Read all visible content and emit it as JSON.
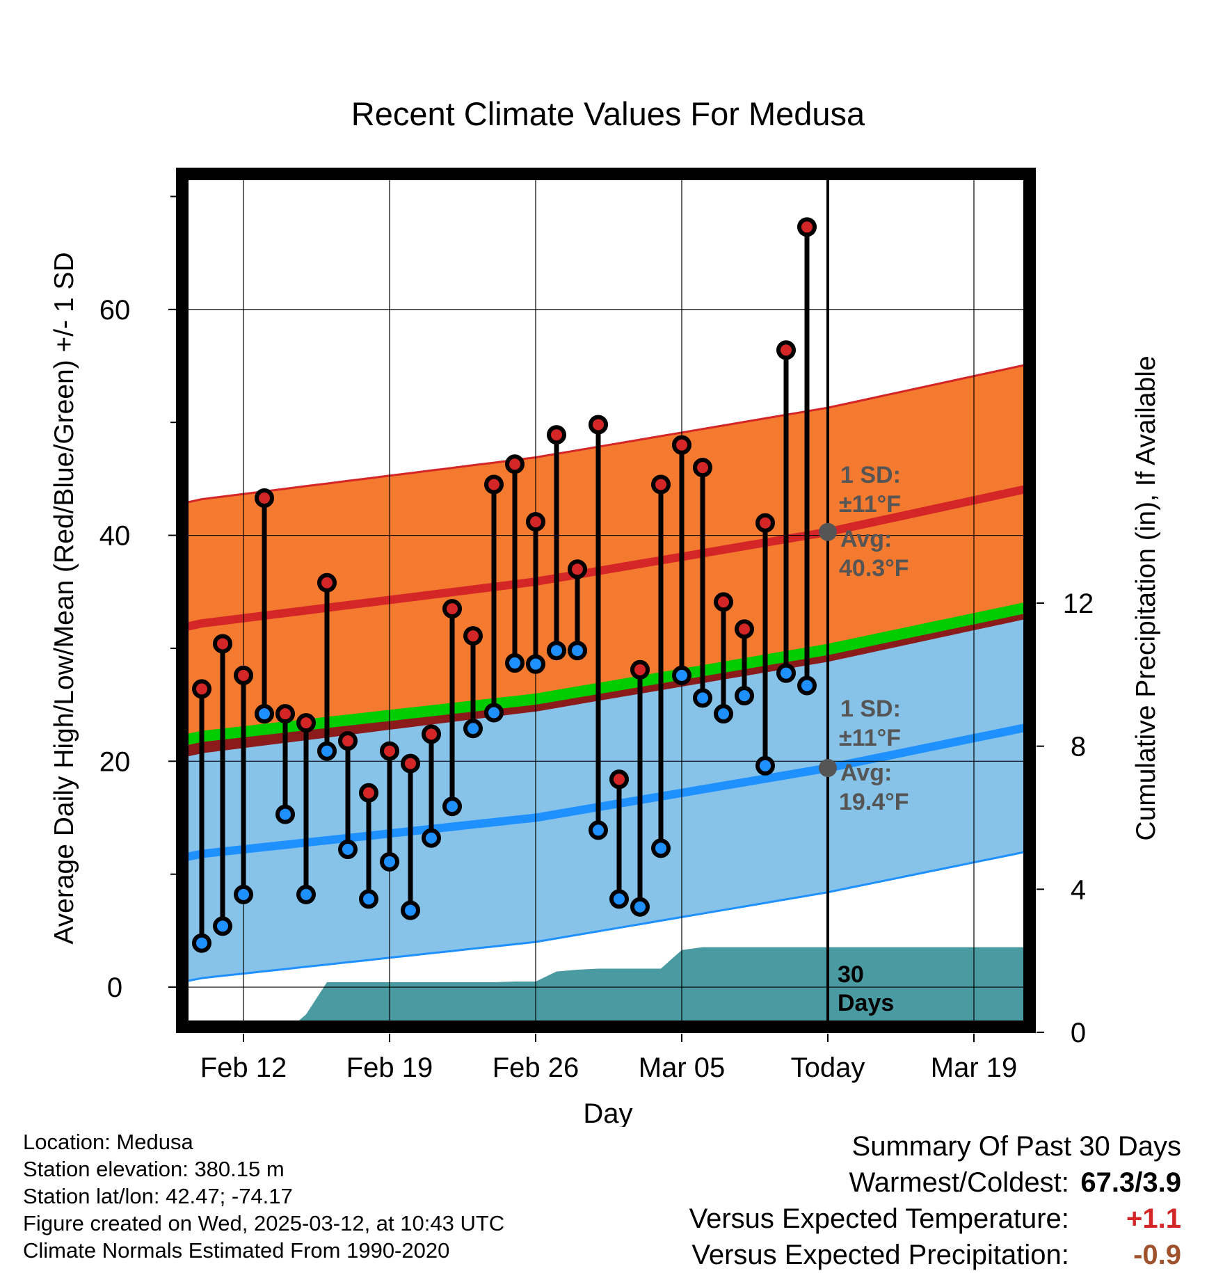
{
  "chart_data": {
    "type": "line",
    "title": "Recent Climate Values For Medusa",
    "xlabel": "Day",
    "ylabel": "Average Daily High/Low/Mean (Red/Blue/Green) +/- 1 SD",
    "ylabel_right": "Cumulative Precipitation (in), If Available",
    "ylim": [
      -4,
      72
    ],
    "ylim_right": [
      0,
      24
    ],
    "y_ticks": [
      0,
      20,
      40,
      60
    ],
    "y_ticks_right": [
      0,
      4,
      8,
      12
    ],
    "x_ticks": [
      "Feb 12",
      "Feb 19",
      "Feb 26",
      "Mar 05",
      "Today",
      "Mar 19"
    ],
    "x_dates": [
      "Feb 10",
      "Feb 11",
      "Feb 12",
      "Feb 13",
      "Feb 14",
      "Feb 15",
      "Feb 16",
      "Feb 17",
      "Feb 18",
      "Feb 19",
      "Feb 20",
      "Feb 21",
      "Feb 22",
      "Feb 23",
      "Feb 24",
      "Feb 25",
      "Feb 26",
      "Feb 27",
      "Feb 28",
      "Mar 01",
      "Mar 02",
      "Mar 03",
      "Mar 04",
      "Mar 05",
      "Mar 06",
      "Mar 07",
      "Mar 08",
      "Mar 09",
      "Mar 10",
      "Mar 11",
      "Mar 12",
      "Mar 13",
      "Mar 14",
      "Mar 15",
      "Mar 16",
      "Mar 17",
      "Mar 18",
      "Mar 19",
      "Mar 20",
      "Mar 21"
    ],
    "series": [
      {
        "name": "High",
        "dates": [
          "Feb 10",
          "Feb 11",
          "Feb 12",
          "Feb 13",
          "Feb 14",
          "Feb 15",
          "Feb 16",
          "Feb 17",
          "Feb 18",
          "Feb 19",
          "Feb 20",
          "Feb 21",
          "Feb 22",
          "Feb 23",
          "Feb 24",
          "Feb 25",
          "Feb 26",
          "Feb 27",
          "Feb 28",
          "Mar 01",
          "Mar 02",
          "Mar 03",
          "Mar 04",
          "Mar 05",
          "Mar 06",
          "Mar 07",
          "Mar 08",
          "Mar 09",
          "Mar 10",
          "Mar 11"
        ],
        "values": [
          26.4,
          30.4,
          27.6,
          43.3,
          24.2,
          23.4,
          35.8,
          21.8,
          17.2,
          20.9,
          19.8,
          22.4,
          33.5,
          31.1,
          44.5,
          46.3,
          41.2,
          48.9,
          37.0,
          49.8,
          18.4,
          28.1,
          44.5,
          48.0,
          46.0,
          34.1,
          31.7,
          41.1,
          56.4,
          67.3
        ]
      },
      {
        "name": "Low",
        "dates": [
          "Feb 10",
          "Feb 11",
          "Feb 12",
          "Feb 13",
          "Feb 14",
          "Feb 15",
          "Feb 16",
          "Feb 17",
          "Feb 18",
          "Feb 19",
          "Feb 20",
          "Feb 21",
          "Feb 22",
          "Feb 23",
          "Feb 24",
          "Feb 25",
          "Feb 26",
          "Feb 27",
          "Feb 28",
          "Mar 01",
          "Mar 02",
          "Mar 03",
          "Mar 04",
          "Mar 05",
          "Mar 06",
          "Mar 07",
          "Mar 08",
          "Mar 09",
          "Mar 10",
          "Mar 11"
        ],
        "values": [
          3.9,
          5.4,
          8.2,
          24.2,
          15.3,
          8.2,
          20.9,
          12.2,
          7.8,
          11.1,
          6.8,
          13.2,
          16.0,
          22.9,
          24.3,
          28.7,
          28.6,
          29.8,
          29.8,
          13.9,
          7.8,
          7.1,
          12.3,
          27.6,
          25.6,
          24.2,
          25.8,
          19.6,
          27.8,
          26.7
        ]
      }
    ],
    "normals": {
      "dates": [
        "Feb 10",
        "Feb 26",
        "Mar 12",
        "Mar 21"
      ],
      "high_avg": [
        32.2,
        35.9,
        40.3,
        43.9
      ],
      "low_avg": [
        11.8,
        15.0,
        19.4,
        22.8
      ],
      "mean_avg": [
        22.2,
        25.5,
        29.9,
        33.4
      ],
      "sd": 11
    },
    "precip": {
      "dates": [
        "Feb 10",
        "Feb 11",
        "Feb 12",
        "Feb 13",
        "Feb 14",
        "Feb 15",
        "Feb 16",
        "Feb 17",
        "Feb 18",
        "Feb 19",
        "Feb 20",
        "Feb 21",
        "Feb 22",
        "Feb 23",
        "Feb 24",
        "Feb 25",
        "Feb 26",
        "Feb 27",
        "Feb 28",
        "Mar 01",
        "Mar 02",
        "Mar 03",
        "Mar 04",
        "Mar 05",
        "Mar 06",
        "Mar 07",
        "Mar 08",
        "Mar 09",
        "Mar 10",
        "Mar 11",
        "Mar 12",
        "Mar 21"
      ],
      "values": [
        0,
        0,
        0,
        0,
        0,
        0.5,
        1.4,
        1.4,
        1.4,
        1.4,
        1.4,
        1.4,
        1.4,
        1.4,
        1.4,
        1.42,
        1.42,
        1.7,
        1.75,
        1.78,
        1.78,
        1.78,
        1.78,
        2.3,
        2.38,
        2.38,
        2.38,
        2.38,
        2.38,
        2.38,
        2.38,
        2.38
      ]
    },
    "today": "Mar 12",
    "annotations": {
      "high": {
        "sd_label": "1 SD:",
        "sd_value": "±11",
        "avg_label": "Avg:",
        "avg_value": "40.3",
        "unit": "°F"
      },
      "low": {
        "sd_label": "1 SD:",
        "sd_value": "±11",
        "avg_label": "Avg:",
        "avg_value": "19.4",
        "unit": "°F"
      },
      "days_label_1": "30",
      "days_label_2": "Days"
    },
    "colors": {
      "high_band": "#f47a30",
      "high_line": "#d42626",
      "low_band": "#87c3e8",
      "low_line": "#1e90ff",
      "mean_line": "#00cc00",
      "overlap": "#8b1a1a",
      "precip": "#4a9aa2",
      "marker_high": "#d42626",
      "marker_low": "#1e90ff",
      "annotation": "#555555"
    }
  },
  "footer": {
    "location": "Location: Medusa",
    "elevation": "Station elevation: 380.15 m",
    "latlon": "Station lat/lon: 42.47; -74.17",
    "created": "Figure created on Wed, 2025-03-12, at 10:43 UTC",
    "normals": "Climate Normals Estimated From 1990-2020"
  },
  "summary": {
    "title": "Summary Of Past 30 Days",
    "warmest_label": "Warmest/Coldest:",
    "warmest_value": "67.3/3.9",
    "temp_label": "Versus Expected Temperature:",
    "temp_value": "+1.1",
    "temp_color": "#d42626",
    "precip_label": "Versus Expected Precipitation:",
    "precip_value": "-0.9",
    "precip_color": "#a0522d"
  }
}
